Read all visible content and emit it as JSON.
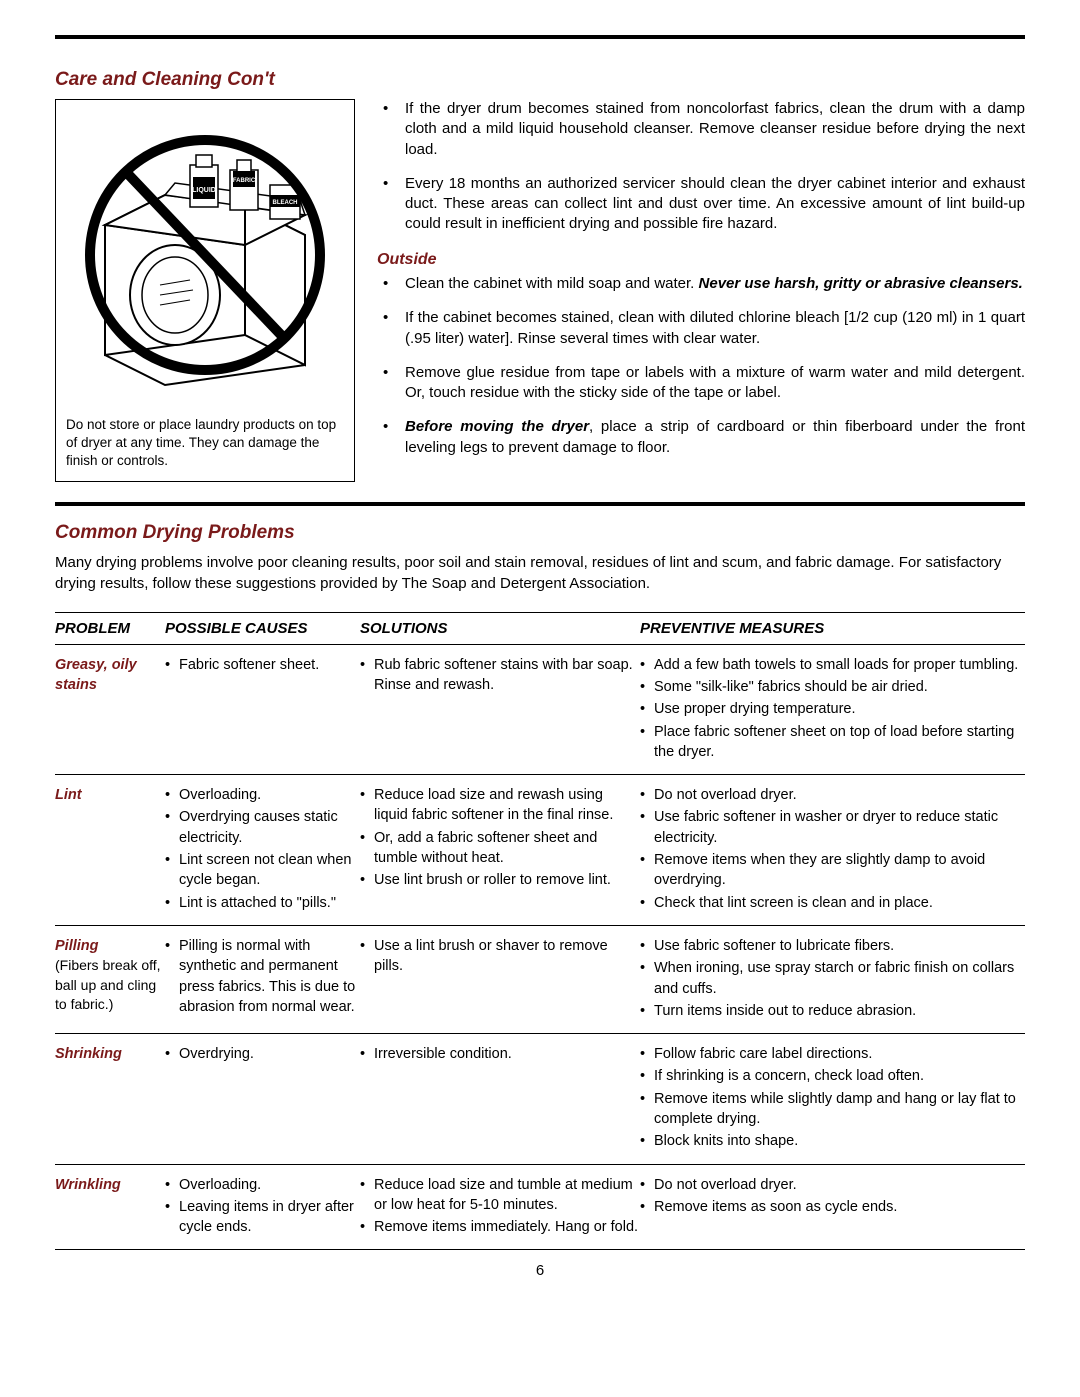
{
  "colors": {
    "heading": "#7a1a1a",
    "text": "#000000",
    "rule": "#000000",
    "prohibition_stroke": "#000000"
  },
  "care": {
    "title": "Care and Cleaning Con't",
    "caption": "Do not store or place laundry products on top of dryer at any time. They can damage the finish or controls.",
    "bullets_top": [
      "If the dryer drum becomes stained from noncolorfast fabrics, clean the drum with a damp cloth and a mild liquid household cleanser. Remove cleanser residue before drying the next load.",
      "Every 18 months an authorized servicer should clean the dryer cabinet interior and exhaust duct. These areas can collect lint and dust over time. An excessive amount of lint build-up could result in inefficient drying and possible fire hazard."
    ],
    "outside_title": "Outside",
    "outside1_prefix": "Clean the cabinet with mild soap and water. ",
    "outside1_bold": "Never use harsh, gritty or abrasive cleansers.",
    "outside2": "If the cabinet becomes stained, clean with diluted chlorine bleach [1/2 cup (120 ml) in 1 quart (.95 liter) water]. Rinse several times with clear water.",
    "outside3": "Remove glue residue from tape or labels with a mixture of warm water and mild detergent. Or, touch residue with the sticky side of the tape or label.",
    "outside4_bold": "Before moving the dryer",
    "outside4_rest": ", place a strip of cardboard or thin fiberboard under the front leveling legs to prevent damage to floor."
  },
  "problems": {
    "title": "Common Drying Problems",
    "intro": "Many drying problems involve poor cleaning results, poor soil and stain removal, residues of lint and scum, and fabric damage. For satisfactory drying results, follow these suggestions provided by The Soap and Detergent Association.",
    "headers": {
      "problem": "PROBLEM",
      "causes": "POSSIBLE CAUSES",
      "solutions": "SOLUTIONS",
      "preventive": "PREVENTIVE MEASURES"
    },
    "rows": [
      {
        "problem": "Greasy, oily stains",
        "problem_sub": "",
        "causes": [
          "Fabric softener sheet."
        ],
        "solutions": [
          "Rub fabric softener stains with bar soap. Rinse and rewash."
        ],
        "preventive": [
          "Add a few bath towels to small loads for proper tumbling.",
          "Some \"silk-like\" fabrics should be air dried.",
          "Use proper drying temperature.",
          "Place fabric softener sheet on top of load before starting the dryer."
        ]
      },
      {
        "problem": "Lint",
        "problem_sub": "",
        "causes": [
          "Overloading.",
          "Overdrying causes static electricity.",
          "Lint screen not clean when cycle began.",
          "Lint is attached to \"pills.\""
        ],
        "solutions": [
          "Reduce load size and rewash using liquid fabric softener in the final rinse.",
          "Or, add a fabric softener sheet and tumble without heat.",
          "Use lint brush or roller to remove lint."
        ],
        "preventive": [
          "Do not overload dryer.",
          "Use fabric softener in washer or dryer to reduce static electricity.",
          "Remove items when they are slightly damp to avoid overdrying.",
          "Check that lint screen is clean and in place."
        ]
      },
      {
        "problem": "Pilling",
        "problem_sub": "(Fibers break off, ball up and cling to fabric.)",
        "causes": [
          "Pilling is normal with synthetic and permanent press fabrics. This is due to abrasion from normal wear."
        ],
        "solutions": [
          "Use a lint brush or shaver to remove pills."
        ],
        "preventive": [
          "Use fabric softener to lubricate fibers.",
          "When ironing, use spray starch or fabric finish on collars and cuffs.",
          "Turn items inside out to reduce abrasion."
        ]
      },
      {
        "problem": "Shrinking",
        "problem_sub": "",
        "causes": [
          "Overdrying."
        ],
        "solutions": [
          "Irreversible condition."
        ],
        "preventive": [
          "Follow fabric care label directions.",
          "If shrinking is a concern, check load often.",
          "Remove items while slightly damp and hang or lay flat to complete drying.",
          "Block knits into shape."
        ]
      },
      {
        "problem": "Wrinkling",
        "problem_sub": "",
        "causes": [
          "Overloading.",
          "Leaving items in dryer after cycle ends."
        ],
        "solutions": [
          "Reduce load size and tumble at medium or low heat for 5-10 minutes.",
          "Remove items immediately. Hang or fold."
        ],
        "preventive": [
          "Do not overload dryer.",
          "Remove items as soon as cycle ends."
        ]
      }
    ]
  },
  "page_number": "6"
}
